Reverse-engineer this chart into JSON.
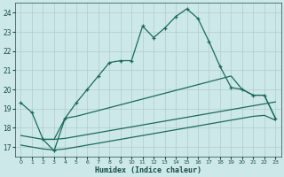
{
  "xlabel": "Humidex (Indice chaleur)",
  "x_ticks": [
    0,
    1,
    2,
    3,
    4,
    5,
    6,
    7,
    8,
    9,
    10,
    11,
    12,
    13,
    14,
    15,
    16,
    17,
    18,
    19,
    20,
    21,
    22,
    23
  ],
  "xlim": [
    -0.5,
    23.5
  ],
  "ylim": [
    16.5,
    24.5
  ],
  "y_ticks": [
    17,
    18,
    19,
    20,
    21,
    22,
    23,
    24
  ],
  "bg_color": "#cde8e8",
  "grid_color": "#b0cccc",
  "line_color": "#1a6b5a",
  "line1_x": [
    0,
    1,
    2,
    3,
    4,
    5,
    6,
    7,
    8,
    9,
    10,
    11,
    12,
    13,
    14,
    15,
    16,
    17,
    18,
    19,
    20,
    21,
    22,
    23
  ],
  "line1_y": [
    19.3,
    18.8,
    17.4,
    16.8,
    18.5,
    19.3,
    20.0,
    20.7,
    21.4,
    21.5,
    21.5,
    23.3,
    22.7,
    23.2,
    23.8,
    24.2,
    23.7,
    22.5,
    21.2,
    20.1,
    20.0,
    19.7,
    19.7,
    18.5
  ],
  "line2_x": [
    2,
    3,
    4,
    5,
    6,
    7,
    8,
    9,
    10,
    11,
    12,
    13,
    14,
    15,
    16,
    17,
    18,
    19,
    20,
    21,
    22,
    23
  ],
  "line2_y": [
    17.4,
    17.4,
    18.5,
    18.6,
    18.75,
    18.9,
    19.05,
    19.2,
    19.35,
    19.5,
    19.65,
    19.8,
    19.95,
    20.1,
    20.25,
    20.4,
    20.55,
    20.7,
    20.0,
    19.7,
    19.7,
    18.5
  ],
  "line3_x": [
    0,
    1,
    2,
    3,
    4,
    5,
    6,
    7,
    8,
    9,
    10,
    11,
    12,
    13,
    14,
    15,
    16,
    17,
    18,
    19,
    20,
    21,
    22,
    23
  ],
  "line3_y": [
    17.6,
    17.5,
    17.4,
    17.4,
    17.45,
    17.55,
    17.65,
    17.75,
    17.85,
    17.95,
    18.05,
    18.15,
    18.25,
    18.35,
    18.45,
    18.55,
    18.65,
    18.75,
    18.85,
    18.95,
    19.05,
    19.15,
    19.25,
    19.35
  ],
  "line4_x": [
    0,
    1,
    2,
    3,
    4,
    5,
    6,
    7,
    8,
    9,
    10,
    11,
    12,
    13,
    14,
    15,
    16,
    17,
    18,
    19,
    20,
    21,
    22,
    23
  ],
  "line4_y": [
    17.1,
    17.0,
    16.9,
    16.85,
    16.9,
    17.0,
    17.1,
    17.2,
    17.3,
    17.4,
    17.5,
    17.6,
    17.7,
    17.8,
    17.9,
    18.0,
    18.1,
    18.2,
    18.3,
    18.4,
    18.5,
    18.6,
    18.65,
    18.4
  ]
}
